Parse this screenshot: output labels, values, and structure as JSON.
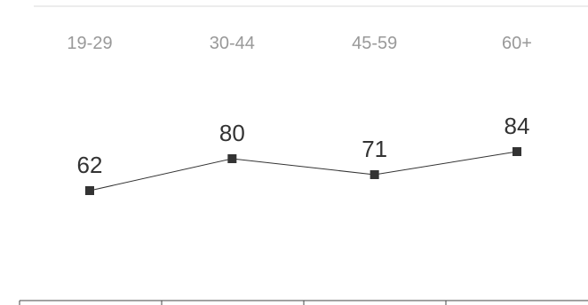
{
  "chart_data": {
    "type": "line",
    "categories": [
      "19-29",
      "30-44",
      "45-59",
      "60+"
    ],
    "series": [
      {
        "values": [
          62,
          80,
          71,
          84
        ]
      }
    ],
    "data_labels": [
      "62",
      "80",
      "71",
      "84"
    ],
    "title": "",
    "xlabel": "",
    "ylabel": "",
    "grid": false,
    "line_color": "#333333",
    "marker": "square",
    "marker_color": "#333333",
    "label_color": "#999999",
    "rule_color": "#d9d9d9"
  }
}
